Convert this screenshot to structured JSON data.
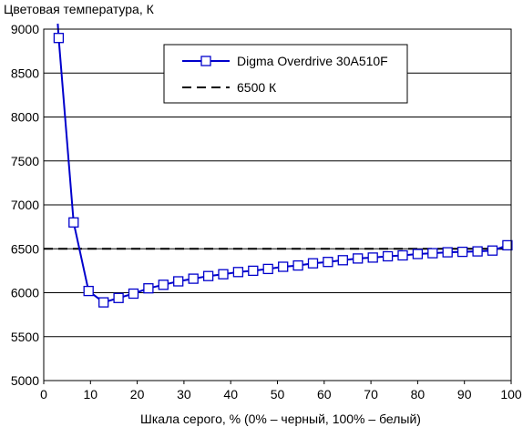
{
  "chart_data": {
    "type": "line",
    "title": "",
    "ylabel": "Цветовая температура, К",
    "xlabel": "Шкала серого, % (0% – черный, 100% – белый)",
    "xlim": [
      0,
      100
    ],
    "ylim": [
      5000,
      9000
    ],
    "xticks": [
      "0",
      "10",
      "20",
      "30",
      "40",
      "50",
      "60",
      "70",
      "80",
      "90",
      "100"
    ],
    "yticks": [
      "5000",
      "5500",
      "6000",
      "6500",
      "7000",
      "7500",
      "8000",
      "8500",
      "9000"
    ],
    "grid": "horizontal",
    "legend_position": "top-right",
    "series": [
      {
        "name": "Digma Overdrive 30A510F",
        "color": "#0000cc",
        "marker": "square",
        "x": [
          3.2,
          6.4,
          9.6,
          12.8,
          16,
          19.2,
          22.4,
          25.6,
          28.8,
          32,
          35.2,
          38.4,
          41.6,
          44.8,
          48,
          51.2,
          54.4,
          57.6,
          60.8,
          64,
          67.2,
          70.4,
          73.6,
          76.8,
          80,
          83.2,
          86.4,
          89.6,
          92.8,
          96,
          99.2
        ],
        "y": [
          8900,
          6800,
          6020,
          5890,
          5940,
          5990,
          6050,
          6090,
          6130,
          6160,
          6190,
          6210,
          6235,
          6250,
          6270,
          6295,
          6310,
          6335,
          6350,
          6370,
          6390,
          6400,
          6415,
          6425,
          6440,
          6450,
          6460,
          6465,
          6470,
          6480,
          6540
        ]
      },
      {
        "name": "6500 К",
        "color": "#000000",
        "style": "dashed",
        "x": [
          0,
          100
        ],
        "y": [
          6500,
          6500
        ]
      }
    ]
  }
}
